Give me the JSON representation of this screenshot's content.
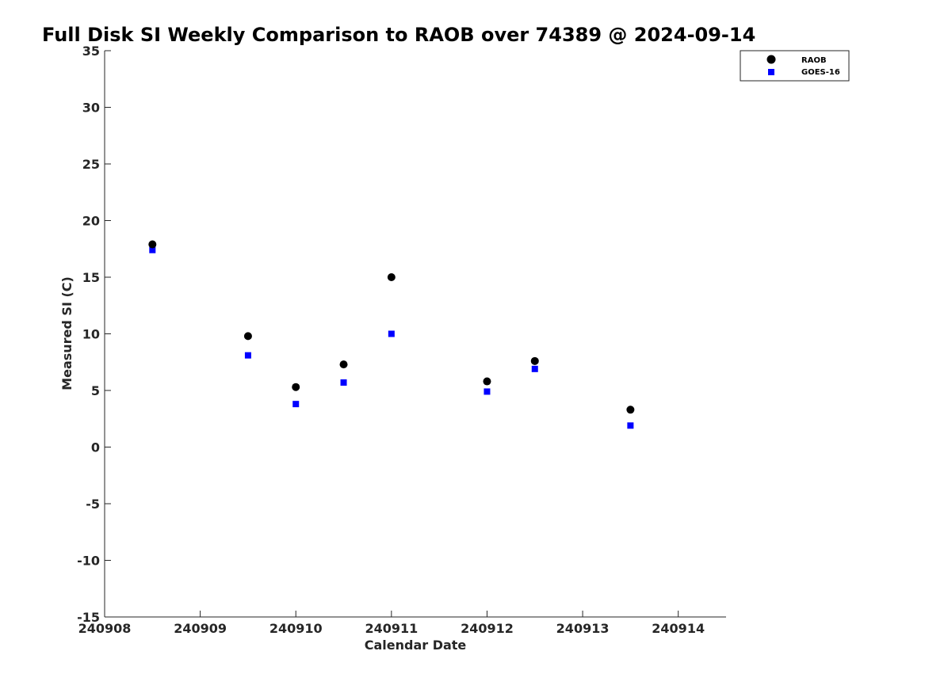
{
  "chart_data": {
    "type": "scatter",
    "title": "Full Disk SI Weekly Comparison to RAOB over 74389 @ 2024-09-14",
    "xlabel": "Calendar Date",
    "ylabel": "Measured SI (C)",
    "xlim": [
      "2024-09-08",
      "2024-09-14.5"
    ],
    "ylim": [
      -15,
      35
    ],
    "x_ticks": [
      {
        "date": "2024-09-08",
        "label": "240908"
      },
      {
        "date": "2024-09-09",
        "label": "240909"
      },
      {
        "date": "2024-09-10",
        "label": "240910"
      },
      {
        "date": "2024-09-11",
        "label": "240911"
      },
      {
        "date": "2024-09-12",
        "label": "240912"
      },
      {
        "date": "2024-09-13",
        "label": "240913"
      },
      {
        "date": "2024-09-14",
        "label": "240914"
      }
    ],
    "y_ticks": [
      35,
      30,
      25,
      20,
      15,
      10,
      5,
      0,
      -5,
      -10,
      -15
    ],
    "grid": false,
    "legend_position": "top-right",
    "series": [
      {
        "name": "RAOB",
        "marker": "circle",
        "color": "#000000",
        "points": [
          {
            "x": "2024-09-08 12:00",
            "y": 17.9
          },
          {
            "x": "2024-09-09 12:00",
            "y": 9.8
          },
          {
            "x": "2024-09-10 00:00",
            "y": 5.3
          },
          {
            "x": "2024-09-10 12:00",
            "y": 7.3
          },
          {
            "x": "2024-09-11 00:00",
            "y": 15.0
          },
          {
            "x": "2024-09-12 00:00",
            "y": 5.8
          },
          {
            "x": "2024-09-12 12:00",
            "y": 7.6
          },
          {
            "x": "2024-09-13 12:00",
            "y": 3.3
          }
        ]
      },
      {
        "name": "GOES-16",
        "marker": "square",
        "color": "#0000ff",
        "points": [
          {
            "x": "2024-09-08 12:00",
            "y": 17.4
          },
          {
            "x": "2024-09-09 12:00",
            "y": 8.1
          },
          {
            "x": "2024-09-10 00:00",
            "y": 3.8
          },
          {
            "x": "2024-09-10 12:00",
            "y": 5.7
          },
          {
            "x": "2024-09-11 00:00",
            "y": 10.0
          },
          {
            "x": "2024-09-12 00:00",
            "y": 4.9
          },
          {
            "x": "2024-09-12 12:00",
            "y": 6.9
          },
          {
            "x": "2024-09-13 12:00",
            "y": 1.9
          }
        ]
      }
    ]
  }
}
